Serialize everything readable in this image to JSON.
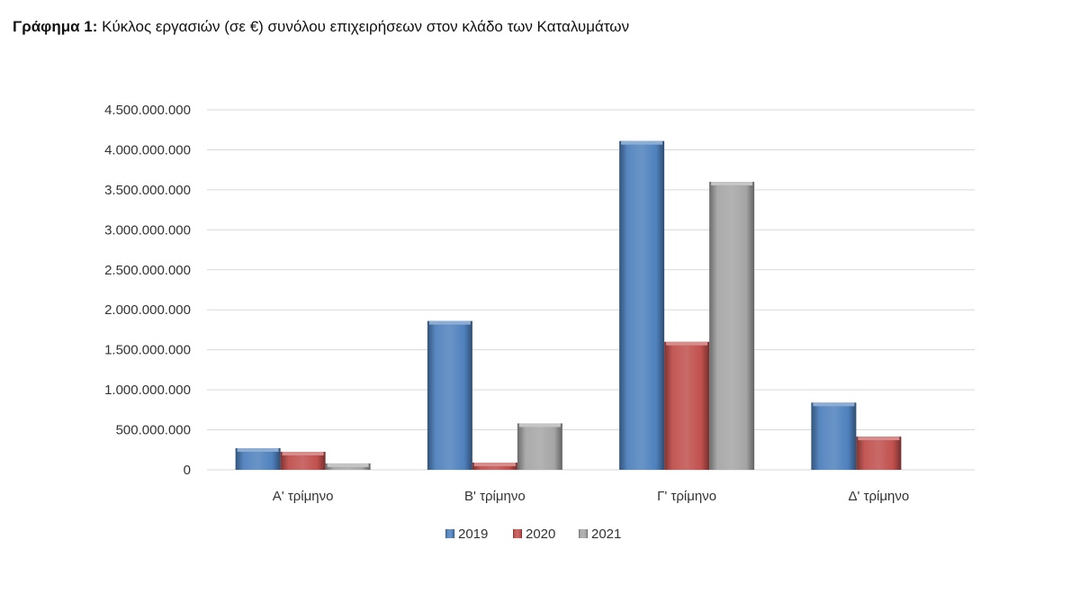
{
  "caption": {
    "label": "Γράφημα 1:",
    "text": "Κύκλος εργασιών (σε €) συνόλου επιχειρήσεων στον κλάδο των Καταλυμάτων"
  },
  "colors": {
    "2019": "#4f81bd",
    "2020": "#c0504d",
    "2021": "#a5a5a5",
    "grid": "#d9d9d9"
  },
  "chart_data": {
    "type": "bar",
    "title": "Κύκλος εργασιών (σε €) συνόλου επιχειρήσεων στον κλάδο των Καταλυμάτων",
    "categories": [
      "Α' τρίμηνο",
      "Β' τρίμηνο",
      "Γ' τρίμηνο",
      "Δ' τρίμηνο"
    ],
    "series": [
      {
        "name": "2019",
        "values": [
          270000000,
          1860000000,
          4110000000,
          840000000
        ]
      },
      {
        "name": "2020",
        "values": [
          225000000,
          90000000,
          1600000000,
          415000000
        ]
      },
      {
        "name": "2021",
        "values": [
          80000000,
          580000000,
          3600000000,
          0
        ]
      }
    ],
    "ylim": [
      0,
      4500000000
    ],
    "yticks": [
      "0",
      "500.000.000",
      "1.000.000.000",
      "1.500.000.000",
      "2.000.000.000",
      "2.500.000.000",
      "3.000.000.000",
      "3.500.000.000",
      "4.000.000.000",
      "4.500.000.000"
    ],
    "grid": true,
    "legend": "bottom"
  }
}
